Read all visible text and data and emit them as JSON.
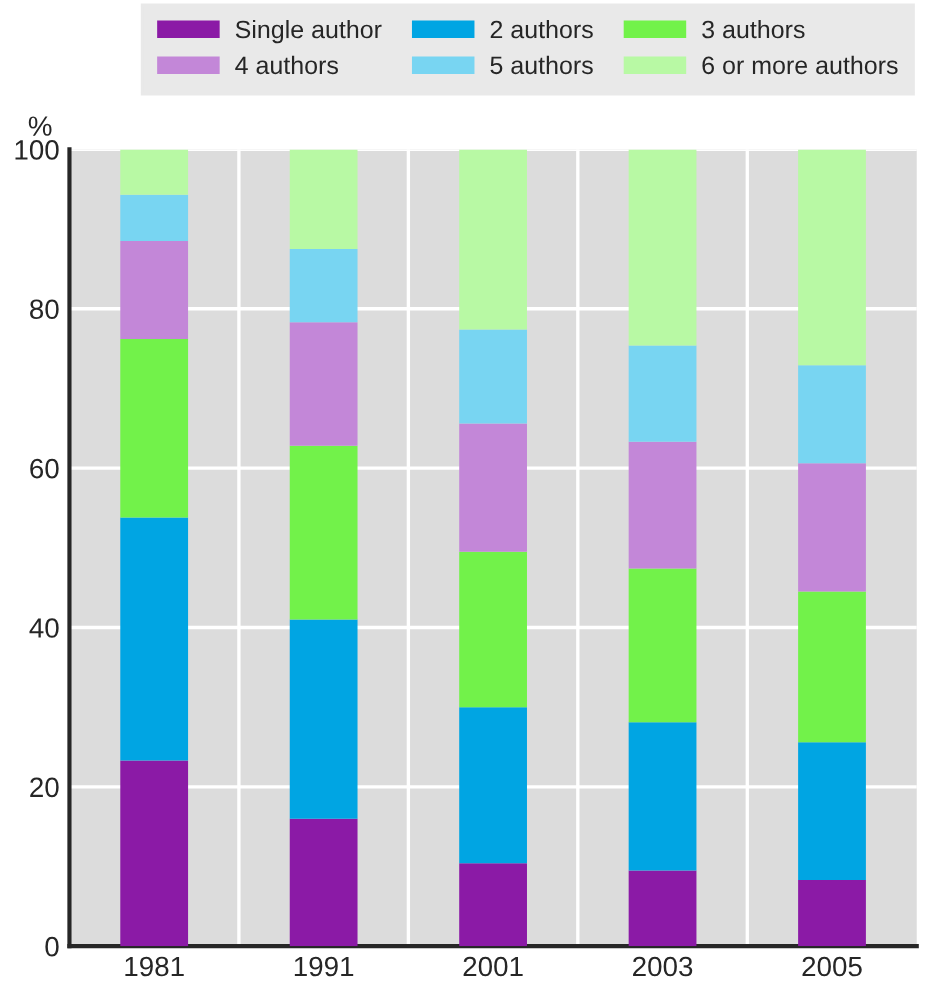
{
  "chart_data": {
    "type": "bar",
    "stacked": true,
    "ylabel": "%",
    "categories": [
      "1981",
      "1991",
      "2001",
      "2003",
      "2005"
    ],
    "series": [
      {
        "name": "Single author",
        "color": "#8b1aa6",
        "values": [
          23.3,
          16.0,
          10.4,
          9.5,
          8.3
        ]
      },
      {
        "name": "2 authors",
        "color": "#00a5e3",
        "values": [
          30.5,
          25.0,
          19.6,
          18.6,
          17.3
        ]
      },
      {
        "name": "3 authors",
        "color": "#72f24a",
        "values": [
          22.4,
          21.8,
          19.5,
          19.3,
          18.9
        ]
      },
      {
        "name": "4 authors",
        "color": "#c387d8",
        "values": [
          12.3,
          15.5,
          16.1,
          15.9,
          16.1
        ]
      },
      {
        "name": "5 authors",
        "color": "#78d5f2",
        "values": [
          5.8,
          9.2,
          11.8,
          12.1,
          12.3
        ]
      },
      {
        "name": "6 or more authors",
        "color": "#b8f9a4",
        "values": [
          5.7,
          12.5,
          22.6,
          24.6,
          27.1
        ]
      }
    ],
    "ylim": [
      0,
      100
    ],
    "yticks": [
      0,
      20,
      40,
      60,
      80,
      100
    ],
    "grid": true,
    "legend": "top"
  }
}
